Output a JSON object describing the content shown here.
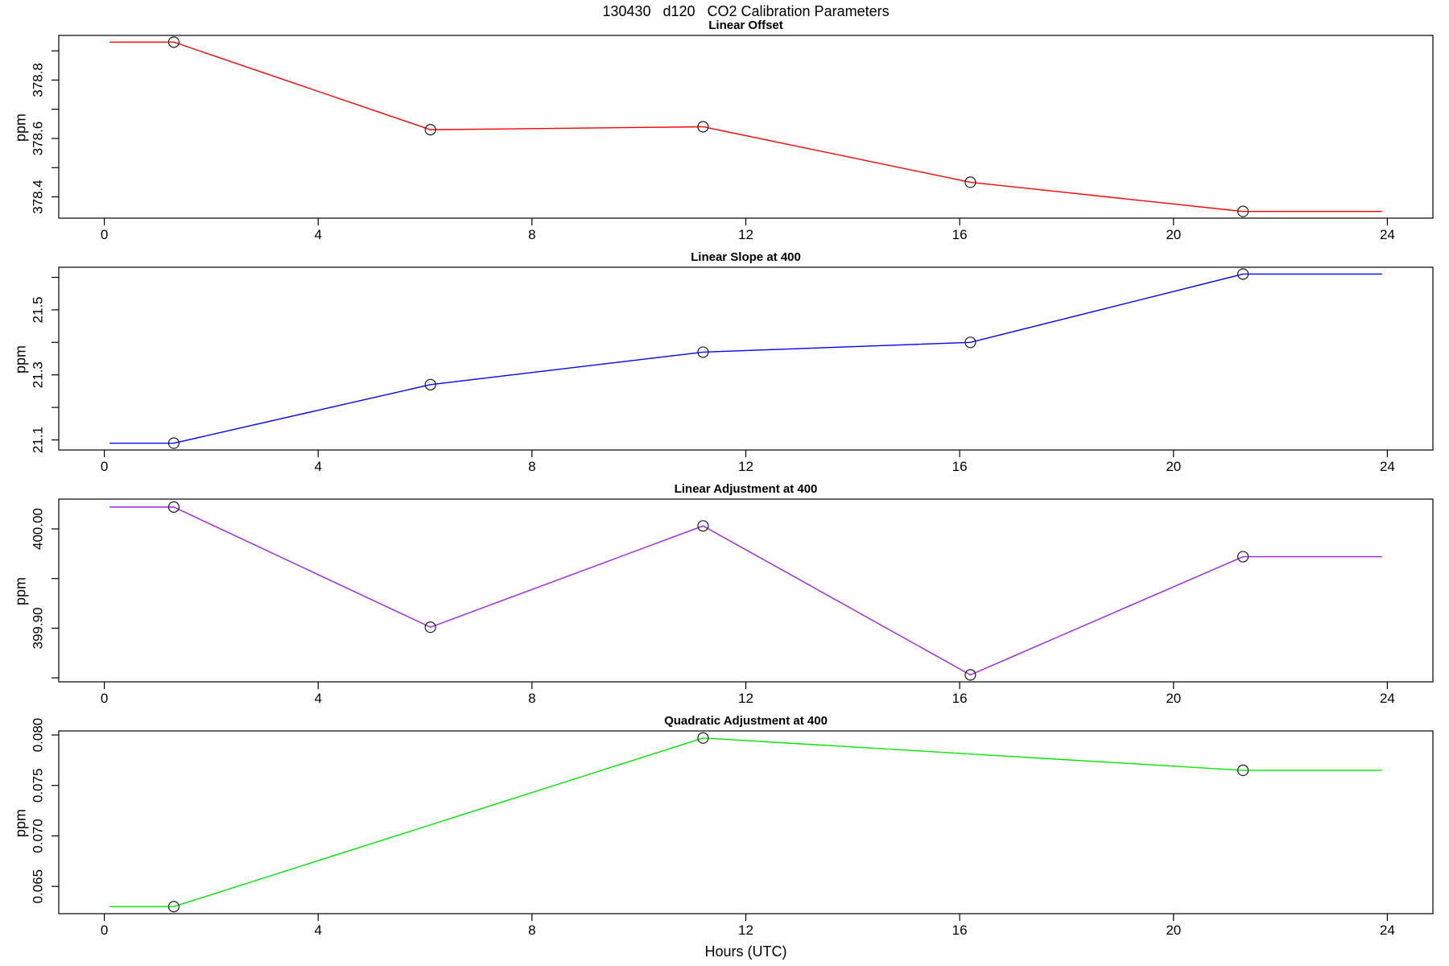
{
  "title": "130430   d120   CO2 Calibration Parameters",
  "xlabel": "Hours (UTC)",
  "axis_color": "#000000",
  "marker": "open-circle",
  "marker_color": "#1a1a1a",
  "xlim": [
    -0.852,
    24.852
  ],
  "x_ticks": [
    0,
    4,
    8,
    12,
    16,
    20,
    24
  ],
  "x_tick_labels": [
    "0",
    "4",
    "8",
    "12",
    "16",
    "20",
    "24"
  ],
  "chart_data": [
    {
      "type": "line",
      "title": "Linear Offset",
      "ylabel": "ppm",
      "color": "#ff0000",
      "x": [
        1.3,
        6.1,
        11.2,
        16.2,
        21.3
      ],
      "y": [
        378.93,
        378.63,
        378.64,
        378.45,
        378.35
      ],
      "line_x_start": 0.1,
      "line_x_end": 23.9,
      "ylim": [
        378.327,
        378.953
      ],
      "y_ticks": [
        378.4,
        378.5,
        378.6,
        378.7,
        378.8,
        378.9
      ],
      "y_tick_labels": [
        "378.4",
        "",
        "378.6",
        "",
        "378.8",
        ""
      ]
    },
    {
      "type": "line",
      "title": "Linear Slope at 400",
      "ylabel": "ppm",
      "color": "#0000ff",
      "x": [
        1.3,
        6.1,
        11.2,
        16.2,
        21.3
      ],
      "y": [
        21.09,
        21.27,
        21.37,
        21.4,
        21.61
      ],
      "line_x_start": 0.1,
      "line_x_end": 23.9,
      "ylim": [
        21.069,
        21.631
      ],
      "y_ticks": [
        21.1,
        21.2,
        21.3,
        21.4,
        21.5,
        21.6
      ],
      "y_tick_labels": [
        "21.1",
        "",
        "21.3",
        "",
        "21.5",
        ""
      ]
    },
    {
      "type": "line",
      "title": "Linear Adjustment at 400",
      "ylabel": "ppm",
      "color": "#a020f0",
      "x": [
        1.3,
        6.1,
        11.2,
        16.2,
        21.3
      ],
      "y": [
        400.022,
        399.901,
        400.003,
        399.853,
        399.972
      ],
      "line_x_start": 0.1,
      "line_x_end": 23.9,
      "ylim": [
        399.846,
        400.03
      ],
      "y_ticks": [
        399.85,
        399.9,
        399.95,
        400.0
      ],
      "y_tick_labels": [
        "",
        "399.90",
        "",
        "400.00"
      ]
    },
    {
      "type": "line",
      "title": "Quadratic Adjustment at 400",
      "ylabel": "ppm",
      "color": "#00e600",
      "x": [
        1.3,
        11.2,
        21.3
      ],
      "y": [
        0.063,
        0.0797,
        0.0765
      ],
      "line_x_start": 0.1,
      "line_x_end": 23.9,
      "ylim": [
        0.0623,
        0.0804
      ],
      "y_ticks": [
        0.065,
        0.07,
        0.075,
        0.08
      ],
      "y_tick_labels": [
        "0.065",
        "0.070",
        "0.075",
        "0.080"
      ]
    }
  ]
}
